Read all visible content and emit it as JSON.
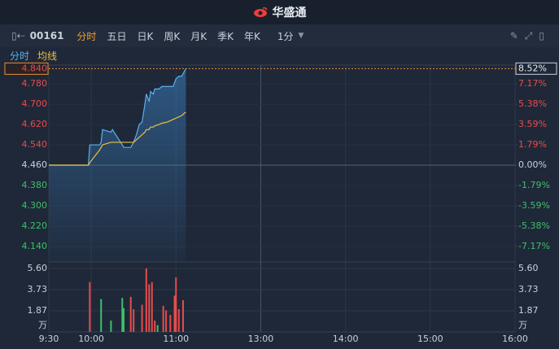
{
  "header": {
    "title": "华盛通"
  },
  "toolbar": {
    "code": "00161",
    "tabs": [
      "分时",
      "五日",
      "日K",
      "周K",
      "月K",
      "季K",
      "年K"
    ],
    "interval": "1分"
  },
  "chart_data": {
    "type": "line",
    "xlim": [
      0,
      330
    ],
    "xticks": [
      {
        "value": 0,
        "label": "9:30"
      },
      {
        "value": 30,
        "label": "10:00"
      },
      {
        "value": 90,
        "label": "11:00"
      },
      {
        "value": 150,
        "label": "13:00"
      },
      {
        "value": 210,
        "label": "14:00"
      },
      {
        "value": 270,
        "label": "15:00"
      },
      {
        "value": 330,
        "label": "16:00"
      }
    ],
    "ylim": [
      4.079,
      4.854
    ],
    "yticks": [
      {
        "value": 4.78,
        "label": "4.780"
      },
      {
        "value": 4.7,
        "label": "4.700"
      },
      {
        "value": 4.62,
        "label": "4.620"
      },
      {
        "value": 4.54,
        "label": "4.540"
      },
      {
        "value": 4.46,
        "label": "4.460"
      },
      {
        "value": 4.38,
        "label": "4.380"
      },
      {
        "value": 4.3,
        "label": "4.300"
      },
      {
        "value": 4.22,
        "label": "4.220"
      },
      {
        "value": 4.14,
        "label": "4.140"
      }
    ],
    "y2lim": [
      -8.54,
      8.83
    ],
    "y2ticks": [
      {
        "value": 7.17,
        "label": "7.17%"
      },
      {
        "value": 5.38,
        "label": "5.38%"
      },
      {
        "value": 3.59,
        "label": "3.59%"
      },
      {
        "value": 1.79,
        "label": "1.79%"
      },
      {
        "value": 0,
        "label": "0.00%"
      },
      {
        "value": -1.79,
        "label": "-1.79%"
      },
      {
        "value": -3.59,
        "label": "-3.59%"
      },
      {
        "value": -5.38,
        "label": "-5.38%"
      },
      {
        "value": -7.17,
        "label": "-7.17%"
      }
    ],
    "current_price": {
      "value": 4.84,
      "label": "4.840"
    },
    "current_pct": {
      "value": 8.52,
      "label": "8.52%"
    },
    "x": [
      0,
      28,
      29,
      36,
      37,
      38,
      44,
      45,
      52,
      53,
      58,
      60,
      62,
      64,
      66,
      68,
      69,
      71,
      72,
      74,
      75,
      78,
      80,
      84,
      88,
      90,
      92,
      94,
      96,
      97
    ],
    "series": [
      {
        "name": "分时",
        "color": "#5ab0f0",
        "values": [
          4.46,
          4.46,
          4.54,
          4.54,
          4.55,
          4.6,
          4.59,
          4.6,
          4.54,
          4.53,
          4.53,
          4.55,
          4.58,
          4.62,
          4.63,
          4.7,
          4.74,
          4.71,
          4.75,
          4.74,
          4.76,
          4.76,
          4.77,
          4.77,
          4.77,
          4.8,
          4.81,
          4.81,
          4.83,
          4.84
        ]
      },
      {
        "name": "均线",
        "color": "#f0c040",
        "values": [
          4.46,
          4.46,
          4.47,
          4.52,
          4.53,
          4.54,
          4.55,
          4.55,
          4.55,
          4.55,
          4.55,
          4.55,
          4.56,
          4.57,
          4.58,
          4.59,
          4.6,
          4.6,
          4.61,
          4.61,
          4.615,
          4.62,
          4.625,
          4.63,
          4.64,
          4.645,
          4.65,
          4.655,
          4.665,
          4.668
        ]
      }
    ],
    "volume": {
      "unit": "万",
      "ylim": [
        0,
        5.6
      ],
      "yticks": [
        {
          "value": 5.6,
          "label": "5.60"
        },
        3.73,
        1.87
      ],
      "x": [
        29,
        37,
        44,
        52,
        53,
        58,
        60,
        66,
        69,
        71,
        73,
        75,
        77,
        81,
        83,
        86,
        89,
        90,
        92,
        95
      ],
      "values": [
        4.4,
        2.9,
        1.0,
        3.0,
        2.1,
        3.1,
        2.0,
        2.4,
        5.6,
        4.2,
        4.4,
        1.0,
        0.6,
        2.3,
        1.9,
        1.5,
        3.2,
        4.8,
        2.0,
        2.8
      ],
      "colors": [
        "#e84c4c",
        "#3fbf6a",
        "#3fbf6a",
        "#3fbf6a",
        "#3fbf6a",
        "#e84c4c",
        "#e84c4c",
        "#e84c4c",
        "#e84c4c",
        "#e84c4c",
        "#e84c4c",
        "#e84c4c",
        "#3fbf6a",
        "#e84c4c",
        "#e84c4c",
        "#e84c4c",
        "#e84c4c",
        "#e84c4c",
        "#e84c4c",
        "#e84c4c"
      ]
    }
  }
}
